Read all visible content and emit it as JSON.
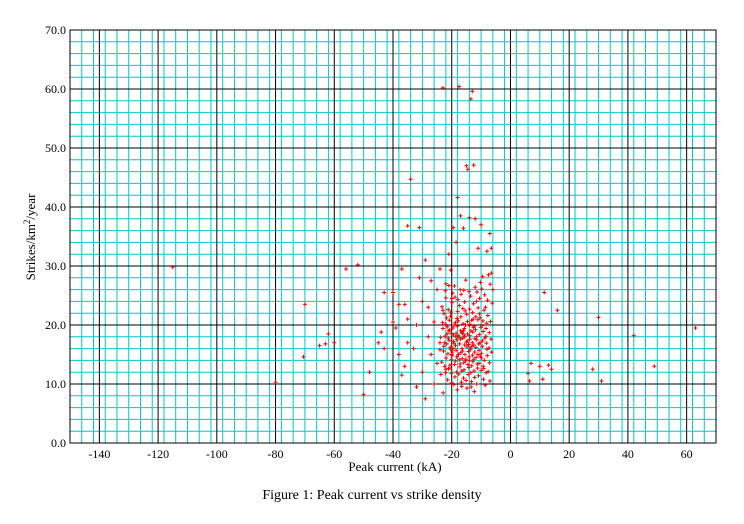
{
  "chart_data": {
    "type": "scatter",
    "title": "",
    "xlabel": "Peak current (kA)",
    "ylabel_main": "Strikes/km",
    "ylabel_sup": "2",
    "ylabel_tail": "/year",
    "xlim": [
      -150,
      70
    ],
    "ylim": [
      0,
      70
    ],
    "x_ticks": [
      -140,
      -120,
      -100,
      -80,
      -60,
      -40,
      -20,
      0,
      20,
      40,
      60
    ],
    "x_tick_labels": [
      "-140",
      "-120",
      "-100",
      "-80",
      "-60",
      "-40",
      "-20",
      "0",
      "20",
      "40",
      "60"
    ],
    "y_ticks": [
      0,
      10,
      20,
      30,
      40,
      50,
      60,
      70
    ],
    "y_tick_labels": [
      "0.0",
      "10.0",
      "20.0",
      "30.0",
      "40.0",
      "50.0",
      "60.0",
      "70.0"
    ],
    "grid": true,
    "marker_color": "#ff0000",
    "grid_minor_color": "#00c8c8",
    "grid_major_color": "#000000",
    "points": [
      [
        -115,
        29.8
      ],
      [
        -80,
        10.3
      ],
      [
        -70,
        23.5
      ],
      [
        -70.5,
        14.6
      ],
      [
        -65,
        16.5
      ],
      [
        -63,
        16.8
      ],
      [
        -62,
        18.5
      ],
      [
        -60,
        17.0
      ],
      [
        -56,
        29.5
      ],
      [
        -52,
        30.2
      ],
      [
        -50,
        8.2
      ],
      [
        -48,
        12.0
      ],
      [
        -45,
        17.0
      ],
      [
        -44,
        18.8
      ],
      [
        -43,
        16.0
      ],
      [
        -43,
        25.5
      ],
      [
        -40,
        20.5
      ],
      [
        -40,
        25.5
      ],
      [
        -39,
        19.5
      ],
      [
        -38,
        23.5
      ],
      [
        -38,
        15.0
      ],
      [
        -37,
        11.5
      ],
      [
        -37,
        29.5
      ],
      [
        -36,
        23.5
      ],
      [
        -36,
        13.0
      ],
      [
        -35,
        17.0
      ],
      [
        -35,
        21.0
      ],
      [
        -35,
        36.8
      ],
      [
        -34,
        44.7
      ],
      [
        -33,
        16.0
      ],
      [
        -32,
        9.5
      ],
      [
        -32,
        20.0
      ],
      [
        -31,
        28.0
      ],
      [
        -31,
        36.5
      ],
      [
        -30,
        12.0
      ],
      [
        -30,
        24.0
      ],
      [
        -29,
        31.0
      ],
      [
        -29,
        7.5
      ],
      [
        -28,
        18.0
      ],
      [
        -28,
        23.0
      ],
      [
        -27,
        15.0
      ],
      [
        -27,
        27.5
      ],
      [
        -26,
        10.0
      ],
      [
        -26,
        20.5
      ],
      [
        -25,
        26.0
      ],
      [
        -25,
        13.5
      ],
      [
        -24,
        29.5
      ],
      [
        -24,
        17.0
      ],
      [
        -23,
        22.5
      ],
      [
        -23,
        60.2
      ],
      [
        -22,
        12.5
      ],
      [
        -22,
        27.0
      ],
      [
        -21,
        19.0
      ],
      [
        -21,
        32.0
      ],
      [
        -20,
        15.0
      ],
      [
        -20,
        24.5
      ],
      [
        -19.5,
        36.5
      ],
      [
        -18.5,
        34.0
      ],
      [
        -18,
        41.6
      ],
      [
        -17.5,
        60.4
      ],
      [
        -17,
        38.5
      ],
      [
        -16,
        36.4
      ],
      [
        -15,
        47.0
      ],
      [
        -14.5,
        46.4
      ],
      [
        -14,
        38.2
      ],
      [
        -13.5,
        58.3
      ],
      [
        -13,
        59.6
      ],
      [
        -12.5,
        47.1
      ],
      [
        -12,
        38.0
      ],
      [
        -11,
        33.0
      ],
      [
        -10,
        37.0
      ],
      [
        -8,
        32.5
      ],
      [
        -7,
        35.5
      ],
      [
        -6.5,
        33.0
      ],
      [
        -6.5,
        28.8
      ],
      [
        -6,
        26.0
      ],
      [
        -18.5,
        18.6
      ],
      [
        -13.5,
        11.9
      ],
      [
        -9.5,
        28.2
      ],
      [
        -20.3,
        29.3
      ],
      [
        -22.0,
        24.6
      ],
      [
        -12.5,
        14.2
      ],
      [
        -20.6,
        12.7
      ],
      [
        -14.6,
        20.6
      ],
      [
        -6.8,
        20.6
      ],
      [
        -22.9,
        8.5
      ],
      [
        -8.3,
        11.9
      ],
      [
        -19.4,
        18.3
      ],
      [
        -10.5,
        24.5
      ],
      [
        -21.1,
        12.6
      ],
      [
        -7.5,
        28.5
      ],
      [
        -17.8,
        20.7
      ],
      [
        -15.9,
        13.6
      ],
      [
        -11.5,
        17.5
      ],
      [
        -22.2,
        25.8
      ],
      [
        -23.7,
        11.6
      ],
      [
        -15.8,
        12.4
      ],
      [
        -20.1,
        14.1
      ],
      [
        -8.2,
        16.9
      ],
      [
        -10.4,
        21.2
      ],
      [
        -6.4,
        15.4
      ],
      [
        -16.6,
        9.6
      ],
      [
        -12.6,
        19.6
      ],
      [
        -23.1,
        20.4
      ],
      [
        -19.5,
        16.0
      ],
      [
        -16.2,
        22.8
      ],
      [
        -9.3,
        13.0
      ],
      [
        -13.9,
        18.2
      ],
      [
        -18.1,
        9.0
      ],
      [
        -17.1,
        26.0
      ],
      [
        -7.2,
        18.7
      ],
      [
        -21.7,
        16.8
      ],
      [
        -11.5,
        10.0
      ],
      [
        -24.0,
        15.8
      ],
      [
        -14.3,
        16.7
      ],
      [
        -9.0,
        22.5
      ],
      [
        -20.4,
        21.5
      ],
      [
        -16.9,
        15.3
      ],
      [
        -8.6,
        9.8
      ],
      [
        -12.0,
        26.4
      ],
      [
        -22.3,
        18.1
      ],
      [
        -10.7,
        15.7
      ],
      [
        -18.9,
        11.2
      ],
      [
        -15.2,
        27.6
      ],
      [
        -6.2,
        23.7
      ],
      [
        -13.2,
        13.1
      ],
      [
        -21.4,
        10.7
      ],
      [
        -17.5,
        17.9
      ],
      [
        -9.7,
        19.9
      ],
      [
        -19.9,
        23.8
      ],
      [
        -14.8,
        9.3
      ],
      [
        -11.1,
        20.9
      ],
      [
        -7.9,
        14.8
      ],
      [
        -23.4,
        13.7
      ],
      [
        -16.3,
        18.8
      ],
      [
        -12.9,
        22.1
      ],
      [
        -20.9,
        17.4
      ],
      [
        -18.3,
        14.6
      ],
      [
        -8.8,
        25.1
      ],
      [
        -15.5,
        15.0
      ],
      [
        -10.0,
        12.3
      ],
      [
        -22.6,
        21.9
      ],
      [
        -13.6,
        24.9
      ],
      [
        -7.0,
        10.5
      ],
      [
        -19.2,
        20.0
      ],
      [
        -16.0,
        11.0
      ],
      [
        -11.8,
        16.2
      ],
      [
        -21.9,
        14.4
      ],
      [
        -9.5,
        17.3
      ],
      [
        -17.4,
        23.3
      ],
      [
        -14.0,
        14.0
      ],
      [
        -6.9,
        26.9
      ],
      [
        -20.7,
        19.2
      ],
      [
        -12.3,
        8.7
      ],
      [
        -15.7,
        19.4
      ],
      [
        -18.7,
        16.5
      ],
      [
        -10.2,
        27.2
      ],
      [
        -23.8,
        17.9
      ],
      [
        -13.1,
        16.4
      ],
      [
        -8.1,
        20.3
      ],
      [
        -17.2,
        12.9
      ],
      [
        -19.7,
        25.4
      ],
      [
        -11.3,
        13.4
      ],
      [
        -21.2,
        22.6
      ],
      [
        -14.9,
        21.8
      ],
      [
        -7.6,
        12.1
      ],
      [
        -16.5,
        16.0
      ],
      [
        -9.9,
        15.2
      ],
      [
        -22.8,
        15.6
      ],
      [
        -12.8,
        18.8
      ],
      [
        -18.2,
        21.1
      ],
      [
        -15.0,
        17.1
      ],
      [
        -10.9,
        11.4
      ],
      [
        -20.0,
        10.2
      ],
      [
        -13.8,
        20.1
      ],
      [
        -6.6,
        17.6
      ],
      [
        -17.7,
        15.0
      ],
      [
        -11.6,
        24.0
      ],
      [
        -19.0,
        13.3
      ],
      [
        -14.4,
        11.6
      ],
      [
        -8.5,
        23.0
      ],
      [
        -21.5,
        19.7
      ],
      [
        -16.8,
        25.2
      ],
      [
        -12.2,
        15.4
      ],
      [
        -9.2,
        10.8
      ],
      [
        -23.3,
        23.1
      ],
      [
        -15.3,
        13.9
      ],
      [
        -18.6,
        18.0
      ],
      [
        -10.6,
        18.4
      ],
      [
        -20.5,
        16.2
      ],
      [
        -13.4,
        9.5
      ],
      [
        -7.3,
        16.1
      ],
      [
        -17.0,
        19.0
      ],
      [
        -11.0,
        22.9
      ],
      [
        -22.1,
        11.9
      ],
      [
        -14.1,
        25.7
      ],
      [
        -19.3,
        9.9
      ],
      [
        -16.1,
        20.2
      ],
      [
        -8.9,
        14.0
      ],
      [
        -12.4,
        12.2
      ],
      [
        -21.0,
        26.7
      ],
      [
        -15.6,
        16.6
      ],
      [
        -9.8,
        26.1
      ],
      [
        -18.4,
        12.0
      ],
      [
        -13.0,
        17.0
      ],
      [
        -20.2,
        18.6
      ],
      [
        -7.7,
        21.6
      ],
      [
        -16.4,
        14.3
      ],
      [
        -11.9,
        19.2
      ],
      [
        -22.4,
        13.0
      ],
      [
        -14.6,
        18.5
      ],
      [
        -17.9,
        24.3
      ],
      [
        -10.3,
        14.7
      ],
      [
        -19.8,
        15.4
      ],
      [
        -12.7,
        21.0
      ],
      [
        -8.4,
        18.1
      ],
      [
        -15.1,
        10.6
      ],
      [
        -21.3,
        15.1
      ],
      [
        -13.7,
        15.8
      ],
      [
        -18.0,
        22.3
      ],
      [
        -9.4,
        20.7
      ],
      [
        -16.7,
        10.3
      ],
      [
        -11.4,
        25.6
      ],
      [
        -20.8,
        20.8
      ],
      [
        -14.2,
        12.8
      ],
      [
        -7.1,
        13.6
      ],
      [
        -17.3,
        16.8
      ],
      [
        -12.1,
        17.7
      ],
      [
        -19.1,
        26.6
      ],
      [
        -15.4,
        22.4
      ],
      [
        -10.8,
        16.8
      ],
      [
        -22.5,
        17.0
      ],
      [
        -13.3,
        10.4
      ],
      [
        -8.0,
        15.9
      ],
      [
        -16.2,
        17.8
      ],
      [
        -18.8,
        13.9
      ],
      [
        -11.7,
        14.5
      ],
      [
        -20.3,
        22.2
      ],
      [
        -14.7,
        17.3
      ],
      [
        -9.1,
        12.6
      ],
      [
        -17.6,
        11.7
      ],
      [
        -12.6,
        23.6
      ],
      [
        -21.6,
        18.5
      ],
      [
        -15.9,
        25.9
      ],
      [
        -10.1,
        19.6
      ],
      [
        -19.6,
        19.5
      ],
      [
        -13.5,
        19.0
      ],
      [
        -7.8,
        24.2
      ],
      [
        -16.9,
        21.4
      ],
      [
        -11.2,
        12.7
      ],
      [
        -22.7,
        16.4
      ],
      [
        -14.3,
        15.5
      ],
      [
        -18.5,
        15.7
      ],
      [
        -9.6,
        16.4
      ],
      [
        -20.6,
        13.2
      ],
      [
        -12.9,
        14.9
      ],
      [
        -15.8,
        18.3
      ],
      [
        -17.1,
        13.4
      ],
      [
        -10.5,
        21.9
      ],
      [
        -23.0,
        19.4
      ],
      [
        -13.9,
        22.7
      ],
      [
        -8.7,
        17.8
      ],
      [
        -19.4,
        17.2
      ],
      [
        -16.6,
        12.2
      ],
      [
        -11.5,
        18.0
      ],
      [
        -21.8,
        21.2
      ],
      [
        -14.5,
        13.3
      ],
      [
        -18.1,
        19.8
      ],
      [
        -12.2,
        11.1
      ],
      [
        -9.3,
        18.9
      ],
      [
        -20.1,
        11.8
      ],
      [
        -15.6,
        23.9
      ],
      [
        -17.8,
        18.2
      ],
      [
        -10.7,
        13.5
      ],
      [
        -13.6,
        16.1
      ],
      [
        -22.0,
        20.1
      ],
      [
        -16.3,
        15.6
      ],
      [
        -8.3,
        19.4
      ],
      [
        -19.9,
        14.8
      ],
      [
        -14.0,
        19.9
      ],
      [
        -11.8,
        21.4
      ],
      [
        -18.9,
        24.7
      ],
      [
        -15.2,
        14.2
      ],
      [
        -20.4,
        15.9
      ],
      [
        -12.5,
        16.6
      ],
      [
        -17.4,
        14.1
      ],
      [
        -9.9,
        14.4
      ],
      [
        -21.2,
        17.8
      ],
      [
        -13.2,
        20.8
      ],
      [
        -16.0,
        19.1
      ],
      [
        -10.4,
        17.0
      ],
      [
        -18.3,
        17.5
      ],
      [
        -14.8,
        16.3
      ],
      [
        -11.1,
        15.0
      ],
      [
        -19.2,
        16.9
      ],
      [
        -15.5,
        18.0
      ],
      [
        -12.8,
        13.8
      ],
      [
        -17.0,
        17.6
      ],
      [
        -13.8,
        17.6
      ],
      [
        -16.5,
        18.6
      ],
      [
        -14.1,
        14.6
      ],
      [
        -12.3,
        19.8
      ],
      [
        -18.7,
        20.4
      ],
      [
        -15.3,
        20.0
      ],
      [
        6,
        11.8
      ],
      [
        6.5,
        10.5
      ],
      [
        7,
        13.5
      ],
      [
        10,
        13.0
      ],
      [
        11,
        10.8
      ],
      [
        11.5,
        25.5
      ],
      [
        13,
        13.2
      ],
      [
        14,
        12.5
      ],
      [
        16,
        22.5
      ],
      [
        28,
        12.5
      ],
      [
        30,
        21.3
      ],
      [
        31,
        10.5
      ],
      [
        42,
        18.2
      ],
      [
        49,
        13.0
      ],
      [
        63,
        19.5
      ]
    ]
  },
  "caption": "Figure 1: Peak current vs strike density"
}
